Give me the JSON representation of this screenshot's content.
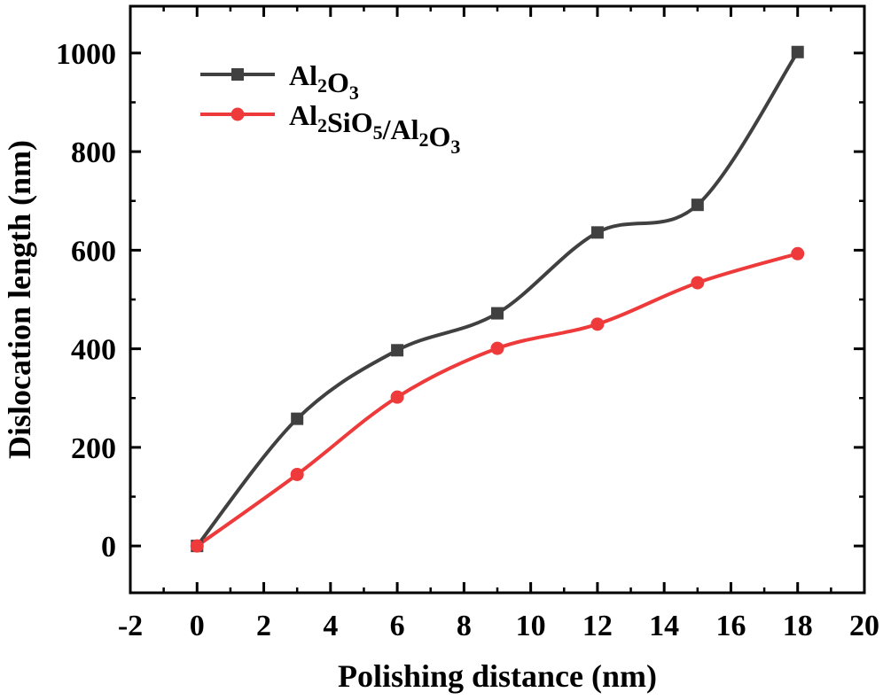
{
  "chart_data": {
    "type": "line",
    "title": "",
    "xlabel": "Polishing distance (nm)",
    "ylabel": "Dislocation length (nm)",
    "xlim": [
      -2,
      20
    ],
    "ylim": [
      -95,
      1095
    ],
    "x_ticks": [
      -2,
      0,
      2,
      4,
      6,
      8,
      10,
      12,
      14,
      16,
      18,
      20
    ],
    "x_tick_labels": [
      "-2",
      "0",
      "2",
      "4",
      "6",
      "8",
      "10",
      "12",
      "14",
      "16",
      "18",
      "20"
    ],
    "y_ticks": [
      0,
      200,
      400,
      600,
      800,
      1000
    ],
    "y_tick_labels": [
      "0",
      "200",
      "400",
      "600",
      "800",
      "1000"
    ],
    "x": [
      0,
      3,
      6,
      9,
      12,
      15,
      18
    ],
    "series": [
      {
        "name": "Al2O3",
        "name_parts": [
          [
            "Al",
            false
          ],
          [
            "2",
            true
          ],
          [
            "O",
            false
          ],
          [
            "3",
            true
          ]
        ],
        "color": "#404040",
        "marker": "square",
        "smooth": true,
        "values": [
          0,
          258,
          397,
          472,
          636,
          692,
          1002
        ]
      },
      {
        "name": "Al2SiO5/Al2O3",
        "name_parts": [
          [
            "Al",
            false
          ],
          [
            "2",
            true
          ],
          [
            "SiO",
            false
          ],
          [
            "5",
            true
          ],
          [
            "/Al",
            false
          ],
          [
            "2",
            true
          ],
          [
            "O",
            false
          ],
          [
            "3",
            true
          ]
        ],
        "color": "#ee3a3a",
        "marker": "circle",
        "smooth": true,
        "values": [
          0,
          145,
          302,
          401,
          450,
          534,
          593
        ]
      }
    ],
    "legend_position": "top-left",
    "grid": false
  }
}
